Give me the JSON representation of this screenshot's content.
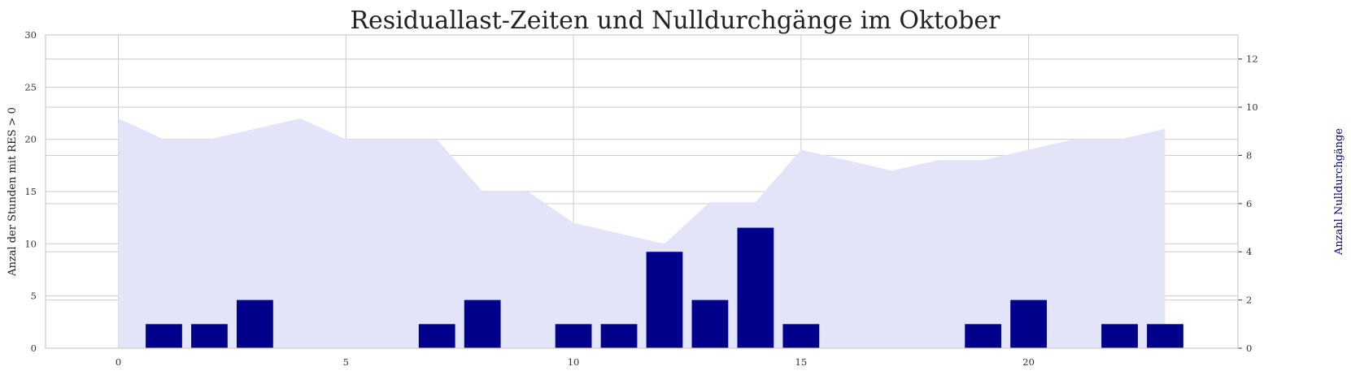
{
  "chart_data": {
    "type": "bar+area",
    "title": "Residuallast-Zeiten und Nulldurchgänge im Oktober",
    "x": [
      0,
      1,
      2,
      3,
      4,
      5,
      6,
      7,
      8,
      9,
      10,
      11,
      12,
      13,
      14,
      15,
      16,
      17,
      18,
      19,
      20,
      21,
      22,
      23
    ],
    "xlim": [
      -1.6,
      24.6
    ],
    "xticks": [
      0,
      5,
      10,
      15,
      20
    ],
    "left_axis": {
      "label": "Anzal der Stunden mit RES > 0",
      "ylim": [
        0,
        30
      ],
      "ticks": [
        0,
        5,
        10,
        15,
        20,
        25,
        30
      ],
      "color": "#222222"
    },
    "right_axis": {
      "label": "Anzahl Nulldurchgänge",
      "ylim": [
        0,
        13
      ],
      "ticks": [
        0,
        2,
        4,
        6,
        8,
        10,
        12
      ],
      "color": "#00008b"
    },
    "series": [
      {
        "type": "area",
        "axis": "left",
        "color": "#e4e4f8",
        "values": [
          22,
          20,
          20,
          21,
          22,
          20,
          20,
          20,
          15,
          15,
          12,
          11,
          10,
          14,
          14,
          19,
          18,
          17,
          18,
          18,
          19,
          20,
          20,
          21
        ]
      },
      {
        "type": "bar",
        "axis": "right",
        "color": "#00008b",
        "values": [
          0,
          1,
          1,
          2,
          0,
          0,
          0,
          1,
          2,
          0,
          1,
          1,
          4,
          2,
          5,
          1,
          0,
          0,
          0,
          1,
          2,
          0,
          1,
          1
        ]
      }
    ],
    "grid": true
  }
}
